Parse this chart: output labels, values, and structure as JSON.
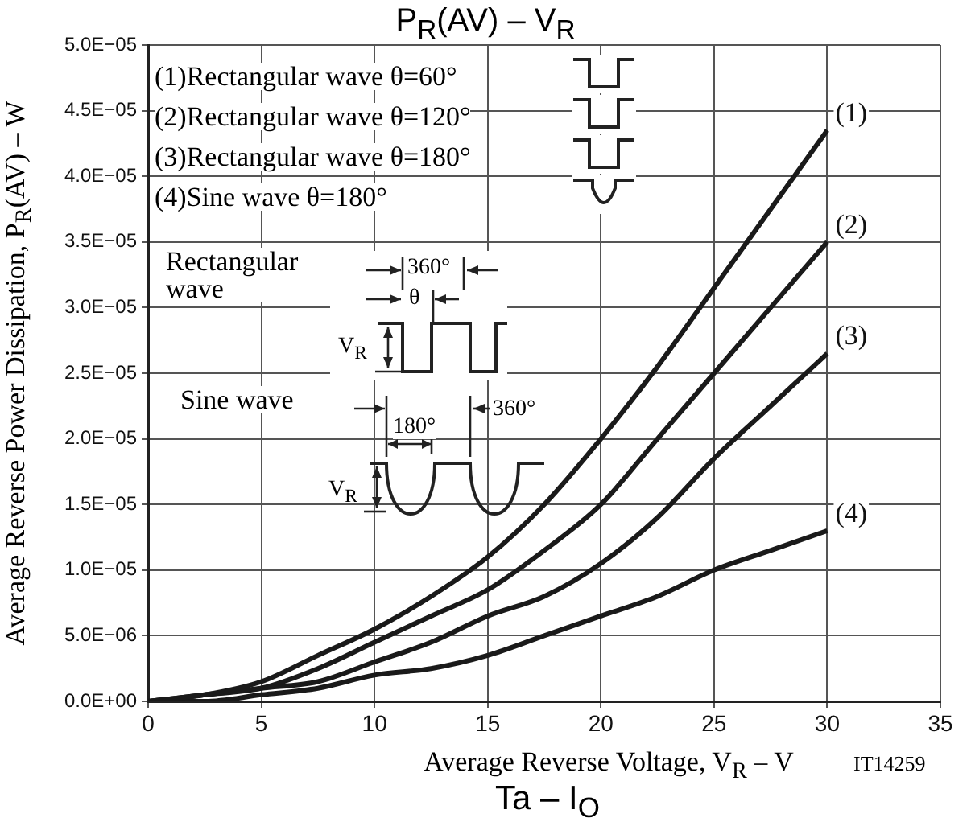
{
  "chart_data": {
    "type": "line",
    "title": "P$_{R}$(AV) – V$_{R}$",
    "xlabel": "Average Reverse Voltage, V$_{R}$ – V",
    "ylabel": "Average Reverse Power Dissipation, P$_{R}$(AV) – W",
    "x": [
      0,
      2.5,
      5,
      7.5,
      10,
      12.5,
      15,
      17.5,
      20,
      22.5,
      25,
      27.5,
      30
    ],
    "series": [
      {
        "name": "(1)",
        "color": "#1a1a1a",
        "values": [
          0,
          5e-07,
          1.5e-06,
          3.5e-06,
          5.5e-06,
          8e-06,
          1.1e-05,
          1.5e-05,
          2e-05,
          2.55e-05,
          3.15e-05,
          3.75e-05,
          4.35e-05
        ]
      },
      {
        "name": "(2)",
        "color": "#1a1a1a",
        "values": [
          0,
          5e-07,
          1e-06,
          2.5e-06,
          4.5e-06,
          6.5e-06,
          8.5e-06,
          1.15e-05,
          1.5e-05,
          2e-05,
          2.5e-05,
          3e-05,
          3.5e-05
        ]
      },
      {
        "name": "(3)",
        "color": "#1a1a1a",
        "values": [
          0,
          5e-07,
          1e-06,
          1.5e-06,
          3e-06,
          4.5e-06,
          6.5e-06,
          8e-06,
          1.05e-05,
          1.4e-05,
          1.85e-05,
          2.25e-05,
          2.65e-05
        ]
      },
      {
        "name": "(4)",
        "color": "#1a1a1a",
        "values": [
          0,
          0,
          5e-07,
          1e-06,
          2e-06,
          2.5e-06,
          3.5e-06,
          5e-06,
          6.5e-06,
          8e-06,
          1e-05,
          1.15e-05,
          1.3e-05
        ]
      }
    ],
    "xlim": [
      0,
      35
    ],
    "xticks": [
      0,
      5,
      10,
      15,
      20,
      25,
      30,
      35
    ],
    "ylim": [
      0,
      5e-05
    ],
    "yticks": [
      {
        "value": 0,
        "label": "0.0E+00"
      },
      {
        "value": 5e-06,
        "label": "5.0E−06"
      },
      {
        "value": 1e-05,
        "label": "1.0E−05"
      },
      {
        "value": 1.5e-05,
        "label": "1.5E−05"
      },
      {
        "value": 2e-05,
        "label": "2.0E−05"
      },
      {
        "value": 2.5e-05,
        "label": "2.5E−05"
      },
      {
        "value": 3e-05,
        "label": "3.0E−05"
      },
      {
        "value": 3.5e-05,
        "label": "3.5E−05"
      },
      {
        "value": 4e-05,
        "label": "4.0E−05"
      },
      {
        "value": 4.5e-05,
        "label": "4.5E−05"
      },
      {
        "value": 5e-05,
        "label": "5.0E−05"
      }
    ],
    "grid": true,
    "line_style": "solid",
    "annotations": [
      "(1)Rectangular wave θ=60°",
      "(2)Rectangular wave θ=120°",
      "(3)Rectangular wave θ=180°",
      "(4)Sine wave θ=180°",
      "Rectangular wave",
      "Sine wave",
      "360°",
      "θ",
      "V$_{R}$",
      "180°",
      "360°",
      "V$_{R}$",
      "IT14259",
      "Ta – I$_{O}$"
    ]
  }
}
